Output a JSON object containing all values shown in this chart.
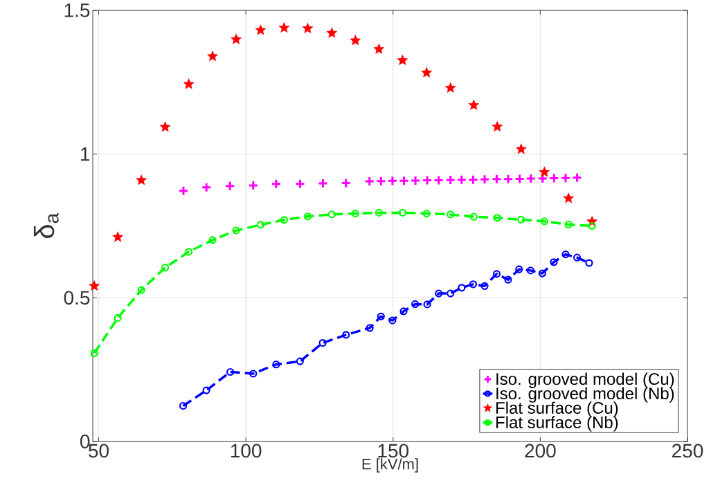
{
  "chart_data": {
    "type": "line",
    "xlabel": "E [kV/m]",
    "ylabel": "δ$_{a}$",
    "xlim": [
      48,
      250
    ],
    "ylim": [
      0,
      1.5
    ],
    "xticks": [
      50,
      100,
      150,
      200,
      250
    ],
    "yticks": [
      0,
      0.5,
      1,
      1.5
    ],
    "grid": true,
    "legend": "bottom right",
    "series": [
      {
        "name": "Iso. grooved model (Cu)",
        "type": "scatter",
        "marker": "plus",
        "color": "#ff00ff",
        "x": [
          78.8,
          86.6,
          94.6,
          102.5,
          110.3,
          118.4,
          126.2,
          134.0,
          142.0,
          145.9,
          149.8,
          153.7,
          157.6,
          161.6,
          165.5,
          169.5,
          173.3,
          177.2,
          181.1,
          185.2,
          189.1,
          193.0,
          196.8,
          200.8,
          204.7,
          208.6,
          212.5
        ],
        "values": [
          0.872,
          0.884,
          0.889,
          0.891,
          0.896,
          0.896,
          0.898,
          0.899,
          0.905,
          0.906,
          0.907,
          0.907,
          0.908,
          0.909,
          0.909,
          0.91,
          0.911,
          0.911,
          0.912,
          0.913,
          0.913,
          0.914,
          0.915,
          0.915,
          0.916,
          0.917,
          0.918
        ]
      },
      {
        "name": "Iso. grooved model (Nb)",
        "marker": "circle",
        "line_style": "dashed",
        "color": "#0000ff",
        "x": [
          78.7,
          86.6,
          94.7,
          102.5,
          110.3,
          118.4,
          126.1,
          134.0,
          142.1,
          145.9,
          149.8,
          153.6,
          157.5,
          161.6,
          165.5,
          169.5,
          173.3,
          177.2,
          181.1,
          185.2,
          189.1,
          192.8,
          196.7,
          200.7,
          204.6,
          208.6,
          212.5,
          216.6
        ],
        "values": [
          0.124,
          0.178,
          0.242,
          0.236,
          0.268,
          0.279,
          0.343,
          0.371,
          0.395,
          0.435,
          0.421,
          0.453,
          0.478,
          0.477,
          0.515,
          0.515,
          0.535,
          0.547,
          0.541,
          0.583,
          0.563,
          0.599,
          0.595,
          0.585,
          0.624,
          0.651,
          0.64,
          0.621
        ]
      },
      {
        "name": "Flat surface (Cu)",
        "type": "scatter",
        "marker": "star",
        "color": "#ff0000",
        "x": [
          48.5,
          56.5,
          64.5,
          72.6,
          80.6,
          88.7,
          96.7,
          105.0,
          113.0,
          121.0,
          129.2,
          137.2,
          145.2,
          153.2,
          161.4,
          169.5,
          177.4,
          185.4,
          193.5,
          201.4,
          209.6,
          217.6
        ],
        "values": [
          0.541,
          0.711,
          0.909,
          1.094,
          1.243,
          1.34,
          1.399,
          1.431,
          1.439,
          1.437,
          1.421,
          1.395,
          1.365,
          1.326,
          1.283,
          1.23,
          1.17,
          1.095,
          1.017,
          0.937,
          0.846,
          0.765
        ]
      },
      {
        "name": "Flat surface (Nb)",
        "marker": "circle",
        "line_style": "dashed",
        "color": "#00ff00",
        "x": [
          48.5,
          56.5,
          64.5,
          72.6,
          80.6,
          88.7,
          96.7,
          105.0,
          113.0,
          121.0,
          129.2,
          137.2,
          145.2,
          153.2,
          161.4,
          169.5,
          177.4,
          185.4,
          193.5,
          201.4,
          209.6,
          217.6
        ],
        "values": [
          0.307,
          0.43,
          0.527,
          0.605,
          0.66,
          0.701,
          0.734,
          0.754,
          0.771,
          0.783,
          0.79,
          0.793,
          0.796,
          0.796,
          0.793,
          0.79,
          0.782,
          0.778,
          0.772,
          0.766,
          0.755,
          0.75
        ]
      }
    ]
  }
}
